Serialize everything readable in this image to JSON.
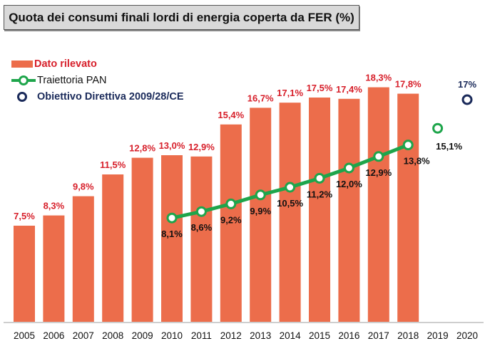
{
  "chart_data": {
    "type": "bar",
    "title": "Quota dei consumi finali lordi di energia coperta da FER (%)",
    "xlabel": "",
    "ylabel": "",
    "categories": [
      "2005",
      "2006",
      "2007",
      "2008",
      "2009",
      "2010",
      "2011",
      "2012",
      "2013",
      "2014",
      "2015",
      "2016",
      "2017",
      "2018",
      "2019",
      "2020"
    ],
    "series": [
      {
        "name": "Dato rilevato",
        "type": "bar",
        "color": "#ec6d4b",
        "label_color": "#d7202b",
        "values": [
          7.5,
          8.3,
          9.8,
          11.5,
          12.8,
          13.0,
          12.9,
          15.4,
          16.7,
          17.1,
          17.5,
          17.4,
          18.3,
          17.8,
          null,
          null
        ],
        "labels": [
          "7,5%",
          "8,3%",
          "9,8%",
          "11,5%",
          "12,8%",
          "13,0%",
          "12,9%",
          "15,4%",
          "16,7%",
          "17,1%",
          "17,5%",
          "17,4%",
          "18,3%",
          "17,8%",
          "",
          ""
        ]
      },
      {
        "name": "Traiettoria PAN",
        "type": "line",
        "color": "#1ea54b",
        "label_color": "#111111",
        "values": [
          null,
          null,
          null,
          null,
          null,
          8.1,
          8.6,
          9.2,
          9.9,
          10.5,
          11.2,
          12.0,
          12.9,
          13.8,
          15.1,
          null
        ],
        "labels": [
          "",
          "",
          "",
          "",
          "",
          "8,1%",
          "8,6%",
          "9,2%",
          "9,9%",
          "10,5%",
          "11,2%",
          "12,0%",
          "12,9%",
          "13,8%",
          "15,1%",
          ""
        ]
      },
      {
        "name": "Obiettivo Direttiva 2009/28/CE",
        "type": "scatter",
        "color": "#1a2a5a",
        "label_color": "#1a2a5a",
        "values": [
          null,
          null,
          null,
          null,
          null,
          null,
          null,
          null,
          null,
          null,
          null,
          null,
          null,
          null,
          null,
          17
        ],
        "labels": [
          "",
          "",
          "",
          "",
          "",
          "",
          "",
          "",
          "",
          "",
          "",
          "",
          "",
          "",
          "",
          "17%"
        ]
      }
    ],
    "ylim": [
      0,
      20
    ],
    "grid": false,
    "legend_position": "top-left"
  },
  "legend": {
    "items": [
      {
        "label": "Dato rilevato",
        "color": "#d7202b"
      },
      {
        "label": "Traiettoria PAN",
        "color": "#111111"
      },
      {
        "label": "Obiettivo Direttiva 2009/28/CE",
        "color": "#1a2a5a"
      }
    ]
  }
}
